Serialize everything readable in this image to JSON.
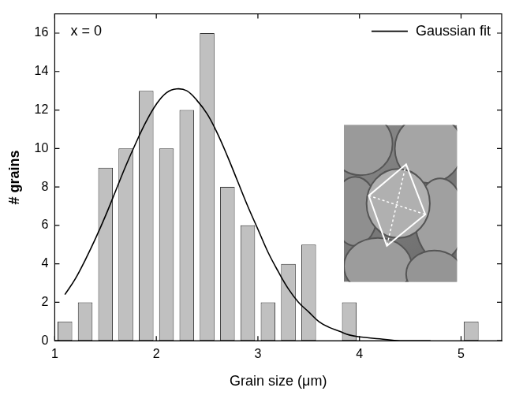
{
  "chart_data": {
    "type": "histogram",
    "x_label": "Grain size (μm)",
    "y_label": "# grains",
    "annotation": "x = 0",
    "bins": [
      1,
      1.2,
      1.4,
      1.6,
      1.8,
      2,
      2.2,
      2.4,
      2.6,
      2.8,
      3,
      3.2,
      3.4,
      3.6,
      3.8,
      4,
      4.2,
      4.4,
      4.6,
      4.8,
      5,
      5.2
    ],
    "counts": [
      1,
      2,
      9,
      10,
      13,
      10,
      12,
      16,
      8,
      6,
      2,
      4,
      5,
      0,
      2,
      0,
      0,
      0,
      0,
      0,
      1
    ],
    "color": "#c0c0c0",
    "series": [
      {
        "name": "Gaussian fit",
        "type": "line",
        "color": "#000000",
        "x": [
          1.1,
          1.2,
          1.3,
          1.4,
          1.5,
          1.6,
          1.7,
          1.8,
          1.9,
          2.0,
          2.1,
          2.2,
          2.3,
          2.4,
          2.5,
          2.6,
          2.7,
          2.8,
          2.9,
          3.0,
          3.1,
          3.2,
          3.3,
          3.4,
          3.5,
          3.6,
          3.7,
          3.8,
          3.9,
          4.0,
          4.2,
          4.4,
          4.7
        ],
        "values": [
          2.4,
          3.2,
          4.2,
          5.3,
          6.5,
          7.8,
          9.1,
          10.3,
          11.4,
          12.3,
          12.9,
          13.1,
          13.0,
          12.5,
          11.8,
          10.8,
          9.6,
          8.3,
          7.0,
          5.8,
          4.6,
          3.6,
          2.7,
          2.0,
          1.5,
          1.0,
          0.7,
          0.5,
          0.3,
          0.2,
          0.1,
          0,
          0
        ]
      }
    ],
    "xlim": [
      1,
      5.4
    ],
    "ylim": [
      0,
      17
    ],
    "xticks": [
      1,
      2,
      3,
      4,
      5
    ],
    "yticks": [
      0,
      2,
      4,
      6,
      8,
      10,
      12,
      14,
      16
    ],
    "grid": false,
    "legend": "upper right"
  }
}
